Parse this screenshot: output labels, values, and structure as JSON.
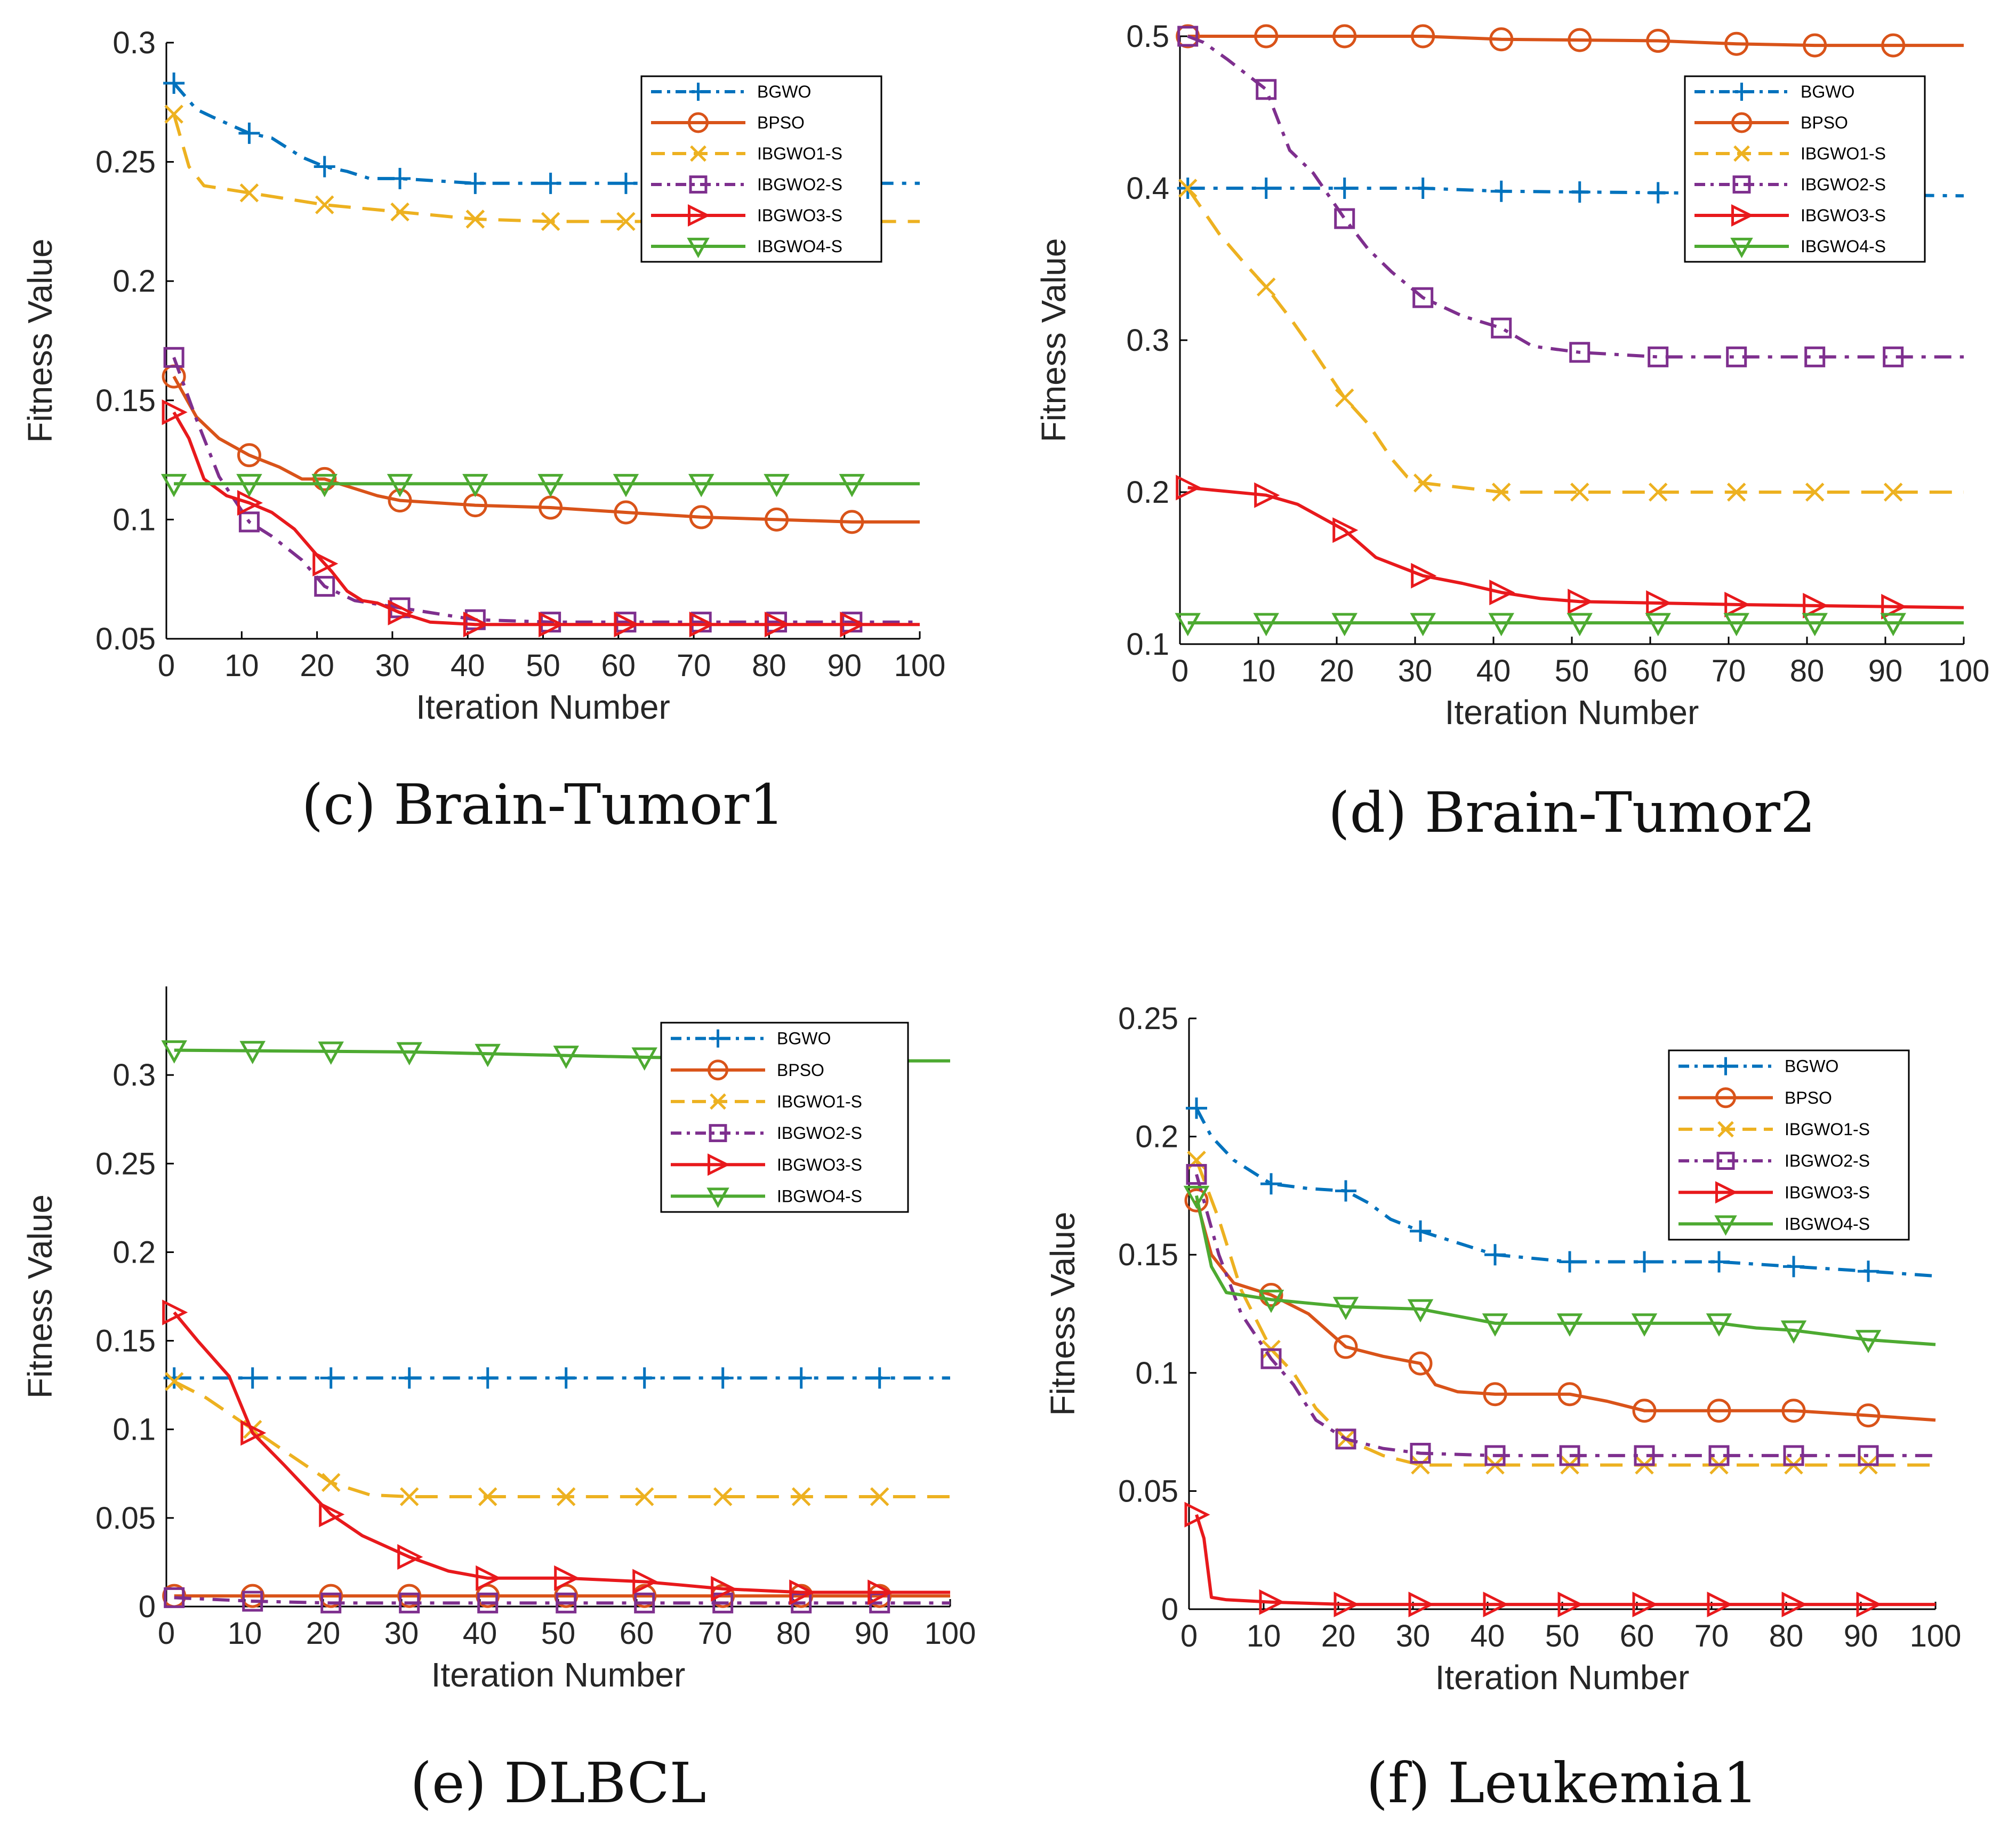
{
  "figure": {
    "markers": {
      "BGWO": "plus",
      "BPSO": "circle",
      "IBGWO1-S": "x",
      "IBGWO2-S": "square",
      "IBGWO3-S": "triangle-right",
      "IBGWO4-S": "triangle-down"
    },
    "line_styles": {
      "BGWO": "dashdot",
      "BPSO": "solid",
      "IBGWO1-S": "dashed",
      "IBGWO2-S": "dashdot",
      "IBGWO3-S": "solid",
      "IBGWO4-S": "solid"
    }
  },
  "chart_data": [
    {
      "type": "line",
      "caption": "(c) Brain-Tumor1",
      "xlabel": "Iteration Number",
      "ylabel": "Fitness Value",
      "xlim": [
        0,
        100
      ],
      "ylim": [
        0.05,
        0.3
      ],
      "xticks": [
        0,
        10,
        20,
        30,
        40,
        50,
        60,
        70,
        80,
        90,
        100
      ],
      "yticks": [
        0.05,
        0.1,
        0.15,
        0.2,
        0.25,
        0.3
      ],
      "ytick_labels": [
        "0.05",
        "0.1",
        "0.15",
        "0.2",
        "0.25",
        "0.3"
      ],
      "grid": false,
      "legend_position": "top-right",
      "series": [
        {
          "name": "BGWO",
          "color": "#0072BD",
          "x": [
            1,
            4,
            6,
            11,
            14,
            18,
            21,
            24,
            27,
            31,
            41,
            51,
            61,
            100
          ],
          "y": [
            0.283,
            0.272,
            0.269,
            0.262,
            0.26,
            0.252,
            0.248,
            0.246,
            0.243,
            0.243,
            0.241,
            0.241,
            0.241,
            0.241
          ],
          "marker_x": [
            1,
            11,
            21,
            31,
            41,
            51,
            61
          ]
        },
        {
          "name": "BPSO",
          "color": "#D95319",
          "x": [
            1,
            4,
            7,
            11,
            15,
            18,
            21,
            25,
            28,
            31,
            36,
            41,
            51,
            61,
            71,
            81,
            91,
            100
          ],
          "y": [
            0.16,
            0.143,
            0.134,
            0.127,
            0.122,
            0.117,
            0.117,
            0.113,
            0.11,
            0.108,
            0.107,
            0.106,
            0.105,
            0.103,
            0.101,
            0.1,
            0.099,
            0.099
          ],
          "marker_x": [
            1,
            11,
            21,
            31,
            41,
            51,
            61,
            71,
            81,
            91
          ]
        },
        {
          "name": "IBGWO1-S",
          "color": "#EDB120",
          "x": [
            1,
            3,
            5,
            11,
            21,
            31,
            41,
            51,
            61,
            100
          ],
          "y": [
            0.27,
            0.248,
            0.24,
            0.237,
            0.232,
            0.229,
            0.226,
            0.225,
            0.225,
            0.225
          ],
          "marker_x": [
            1,
            11,
            21,
            31,
            41,
            51,
            61
          ]
        },
        {
          "name": "IBGWO2-S",
          "color": "#7E2F8E",
          "x": [
            1,
            4,
            7,
            11,
            14,
            18,
            21,
            25,
            31,
            41,
            51,
            61,
            71,
            81,
            91,
            100
          ],
          "y": [
            0.168,
            0.142,
            0.118,
            0.099,
            0.093,
            0.083,
            0.072,
            0.066,
            0.063,
            0.058,
            0.057,
            0.057,
            0.057,
            0.057,
            0.057,
            0.057
          ],
          "marker_x": [
            1,
            11,
            21,
            31,
            41,
            51,
            61,
            71,
            81,
            91
          ]
        },
        {
          "name": "IBGWO3-S",
          "color": "#E8191C",
          "x": [
            1,
            3,
            5,
            8,
            11,
            14,
            17,
            20,
            22,
            24,
            26,
            28,
            31,
            35,
            41,
            51,
            61,
            100
          ],
          "y": [
            0.145,
            0.134,
            0.117,
            0.11,
            0.107,
            0.103,
            0.096,
            0.085,
            0.078,
            0.07,
            0.066,
            0.065,
            0.061,
            0.057,
            0.056,
            0.056,
            0.056,
            0.056
          ],
          "marker_x": [
            1,
            11,
            21,
            31,
            41,
            51,
            61,
            71,
            81,
            91
          ]
        },
        {
          "name": "IBGWO4-S",
          "color": "#4DAA31",
          "x": [
            1,
            100
          ],
          "y": [
            0.115,
            0.115
          ],
          "marker_x": [
            1,
            11,
            21,
            31,
            41,
            51,
            61,
            71,
            81,
            91
          ]
        }
      ]
    },
    {
      "type": "line",
      "caption": "(d) Brain-Tumor2",
      "xlabel": "Iteration Number",
      "ylabel": "Fitness Value",
      "xlim": [
        0,
        100
      ],
      "ylim": [
        0.1,
        0.5
      ],
      "xticks": [
        0,
        10,
        20,
        30,
        40,
        50,
        60,
        70,
        80,
        90,
        100
      ],
      "yticks": [
        0.1,
        0.2,
        0.3,
        0.4,
        0.5
      ],
      "ytick_labels": [
        "0.1",
        "0.2",
        "0.3",
        "0.4",
        "0.5"
      ],
      "grid": false,
      "legend_position": "top-right",
      "series": [
        {
          "name": "BGWO",
          "color": "#0072BD",
          "x": [
            1,
            31,
            41,
            61,
            100
          ],
          "y": [
            0.4,
            0.4,
            0.398,
            0.397,
            0.395
          ],
          "marker_x": [
            1,
            11,
            21,
            31,
            41,
            51,
            61
          ]
        },
        {
          "name": "BPSO",
          "color": "#D95319",
          "x": [
            1,
            31,
            41,
            61,
            71,
            81,
            100
          ],
          "y": [
            0.5,
            0.5,
            0.498,
            0.497,
            0.495,
            0.494,
            0.494
          ],
          "marker_x": [
            1,
            11,
            21,
            31,
            41,
            51,
            61,
            71,
            81,
            91
          ]
        },
        {
          "name": "IBGWO1-S",
          "color": "#EDB120",
          "x": [
            1,
            5,
            8,
            11,
            14,
            17,
            21,
            24,
            27,
            29,
            31,
            36,
            41,
            100
          ],
          "y": [
            0.4,
            0.37,
            0.352,
            0.335,
            0.315,
            0.293,
            0.262,
            0.245,
            0.222,
            0.21,
            0.206,
            0.203,
            0.2,
            0.2
          ],
          "marker_x": [
            1,
            11,
            21,
            31,
            41,
            51,
            61,
            71,
            81,
            91
          ]
        },
        {
          "name": "IBGWO2-S",
          "color": "#7E2F8E",
          "x": [
            1,
            3,
            6,
            11,
            14,
            17,
            21,
            24,
            27,
            31,
            36,
            41,
            45,
            51,
            61,
            100
          ],
          "y": [
            0.5,
            0.496,
            0.485,
            0.465,
            0.425,
            0.41,
            0.38,
            0.36,
            0.345,
            0.328,
            0.316,
            0.308,
            0.296,
            0.292,
            0.289,
            0.289
          ],
          "marker_x": [
            1,
            11,
            21,
            31,
            41,
            51,
            61,
            71,
            81,
            91
          ]
        },
        {
          "name": "IBGWO3-S",
          "color": "#E8191C",
          "x": [
            1,
            11,
            15,
            21,
            25,
            31,
            36,
            41,
            46,
            51,
            61,
            71,
            100
          ],
          "y": [
            0.203,
            0.198,
            0.192,
            0.175,
            0.157,
            0.145,
            0.14,
            0.134,
            0.13,
            0.128,
            0.127,
            0.126,
            0.124
          ],
          "marker_x": [
            1,
            11,
            21,
            31,
            41,
            51,
            61,
            71,
            81,
            91
          ]
        },
        {
          "name": "IBGWO4-S",
          "color": "#4DAA31",
          "x": [
            1,
            100
          ],
          "y": [
            0.114,
            0.114
          ],
          "marker_x": [
            1,
            11,
            21,
            31,
            41,
            51,
            61,
            71,
            81,
            91
          ]
        }
      ]
    },
    {
      "type": "line",
      "caption": "(e) DLBCL",
      "xlabel": "Iteration Number",
      "ylabel": "Fitness Value",
      "xlim": [
        0,
        100
      ],
      "ylim": [
        0,
        0.35
      ],
      "xticks": [
        0,
        10,
        20,
        30,
        40,
        50,
        60,
        70,
        80,
        90,
        100
      ],
      "yticks": [
        0,
        0.05,
        0.1,
        0.15,
        0.2,
        0.25,
        0.3
      ],
      "ytick_labels": [
        "0",
        "0.05",
        "0.1",
        "0.15",
        "0.2",
        "0.25",
        "0.3"
      ],
      "grid": false,
      "legend_position": "top-right",
      "series": [
        {
          "name": "BGWO",
          "color": "#0072BD",
          "x": [
            1,
            100
          ],
          "y": [
            0.129,
            0.129
          ],
          "marker_x": [
            1,
            11,
            21,
            31,
            41,
            51,
            61,
            71,
            81,
            91
          ]
        },
        {
          "name": "BPSO",
          "color": "#D95319",
          "x": [
            1,
            100
          ],
          "y": [
            0.006,
            0.006
          ],
          "marker_x": [
            1,
            11,
            21,
            31,
            41,
            51,
            61,
            71,
            81,
            91
          ]
        },
        {
          "name": "IBGWO1-S",
          "color": "#EDB120",
          "x": [
            1,
            5,
            11,
            16,
            21,
            26,
            31,
            41,
            100
          ],
          "y": [
            0.127,
            0.118,
            0.1,
            0.085,
            0.07,
            0.063,
            0.062,
            0.062,
            0.062
          ],
          "marker_x": [
            1,
            11,
            21,
            31,
            41,
            51,
            61,
            71,
            81,
            91
          ]
        },
        {
          "name": "IBGWO2-S",
          "color": "#7E2F8E",
          "x": [
            1,
            11,
            21,
            100
          ],
          "y": [
            0.005,
            0.003,
            0.002,
            0.002
          ],
          "marker_x": [
            1,
            11,
            21,
            31,
            41,
            51,
            61,
            71,
            81,
            91
          ]
        },
        {
          "name": "IBGWO3-S",
          "color": "#E8191C",
          "x": [
            1,
            4,
            8,
            11,
            15,
            21,
            25,
            31,
            36,
            41,
            51,
            61,
            71,
            81,
            100
          ],
          "y": [
            0.166,
            0.15,
            0.13,
            0.098,
            0.08,
            0.052,
            0.04,
            0.028,
            0.02,
            0.016,
            0.016,
            0.014,
            0.01,
            0.008,
            0.008
          ],
          "marker_x": [
            1,
            11,
            21,
            31,
            41,
            51,
            61,
            71,
            81,
            91
          ]
        },
        {
          "name": "IBGWO4-S",
          "color": "#4DAA31",
          "x": [
            1,
            31,
            51,
            61,
            91,
            100
          ],
          "y": [
            0.314,
            0.313,
            0.311,
            0.31,
            0.308,
            0.308
          ],
          "marker_x": [
            1,
            11,
            21,
            31,
            41,
            51,
            61
          ]
        }
      ]
    },
    {
      "type": "line",
      "caption": "(f) Leukemia1",
      "xlabel": "Iteration Number",
      "ylabel": "Fitness Value",
      "xlim": [
        0,
        100
      ],
      "ylim": [
        0,
        0.25
      ],
      "xticks": [
        0,
        10,
        20,
        30,
        40,
        50,
        60,
        70,
        80,
        90,
        100
      ],
      "yticks": [
        0,
        0.05,
        0.1,
        0.15,
        0.2,
        0.25
      ],
      "ytick_labels": [
        "0",
        "0.05",
        "0.1",
        "0.15",
        "0.2",
        "0.25"
      ],
      "grid": false,
      "legend_position": "top-right",
      "series": [
        {
          "name": "BGWO",
          "color": "#0072BD",
          "x": [
            1,
            3,
            6,
            11,
            16,
            21,
            24,
            27,
            31,
            36,
            41,
            51,
            61,
            71,
            81,
            91,
            100
          ],
          "y": [
            0.212,
            0.2,
            0.19,
            0.18,
            0.178,
            0.177,
            0.172,
            0.165,
            0.16,
            0.155,
            0.15,
            0.147,
            0.147,
            0.147,
            0.145,
            0.143,
            0.141
          ],
          "marker_x": [
            1,
            11,
            21,
            31,
            41,
            51,
            61,
            71,
            81,
            91
          ]
        },
        {
          "name": "BPSO",
          "color": "#D95319",
          "x": [
            1,
            3,
            6,
            11,
            16,
            21,
            26,
            31,
            33,
            36,
            41,
            51,
            56,
            61,
            71,
            81,
            91,
            100
          ],
          "y": [
            0.173,
            0.15,
            0.138,
            0.133,
            0.125,
            0.111,
            0.107,
            0.104,
            0.095,
            0.092,
            0.091,
            0.091,
            0.088,
            0.084,
            0.084,
            0.084,
            0.082,
            0.08
          ],
          "marker_x": [
            1,
            11,
            21,
            31,
            41,
            51,
            61,
            71,
            81,
            91
          ]
        },
        {
          "name": "IBGWO1-S",
          "color": "#EDB120",
          "x": [
            1,
            4,
            7,
            11,
            14,
            17,
            21,
            26,
            31,
            41,
            100
          ],
          "y": [
            0.19,
            0.165,
            0.135,
            0.11,
            0.1,
            0.085,
            0.072,
            0.065,
            0.061,
            0.061,
            0.061
          ],
          "marker_x": [
            1,
            11,
            21,
            31,
            41,
            51,
            61,
            71,
            81,
            91
          ]
        },
        {
          "name": "IBGWO2-S",
          "color": "#7E2F8E",
          "x": [
            1,
            4,
            7,
            11,
            14,
            17,
            21,
            26,
            31,
            41,
            100
          ],
          "y": [
            0.184,
            0.15,
            0.125,
            0.106,
            0.095,
            0.08,
            0.072,
            0.068,
            0.066,
            0.065,
            0.065
          ],
          "marker_x": [
            1,
            11,
            21,
            31,
            41,
            51,
            61,
            71,
            81,
            91
          ]
        },
        {
          "name": "IBGWO3-S",
          "color": "#E8191C",
          "x": [
            1,
            2,
            3,
            5,
            11,
            21,
            100
          ],
          "y": [
            0.04,
            0.03,
            0.005,
            0.004,
            0.003,
            0.002,
            0.002
          ],
          "marker_x": [
            1,
            11,
            21,
            31,
            41,
            51,
            61,
            71,
            81,
            91
          ]
        },
        {
          "name": "IBGWO4-S",
          "color": "#4DAA31",
          "x": [
            1,
            3,
            5,
            11,
            21,
            31,
            36,
            41,
            51,
            61,
            71,
            76,
            81,
            91,
            100
          ],
          "y": [
            0.175,
            0.145,
            0.134,
            0.131,
            0.128,
            0.127,
            0.124,
            0.121,
            0.121,
            0.121,
            0.121,
            0.119,
            0.118,
            0.114,
            0.112
          ],
          "marker_x": [
            1,
            11,
            21,
            31,
            41,
            51,
            61,
            71,
            81,
            91
          ]
        }
      ]
    }
  ]
}
